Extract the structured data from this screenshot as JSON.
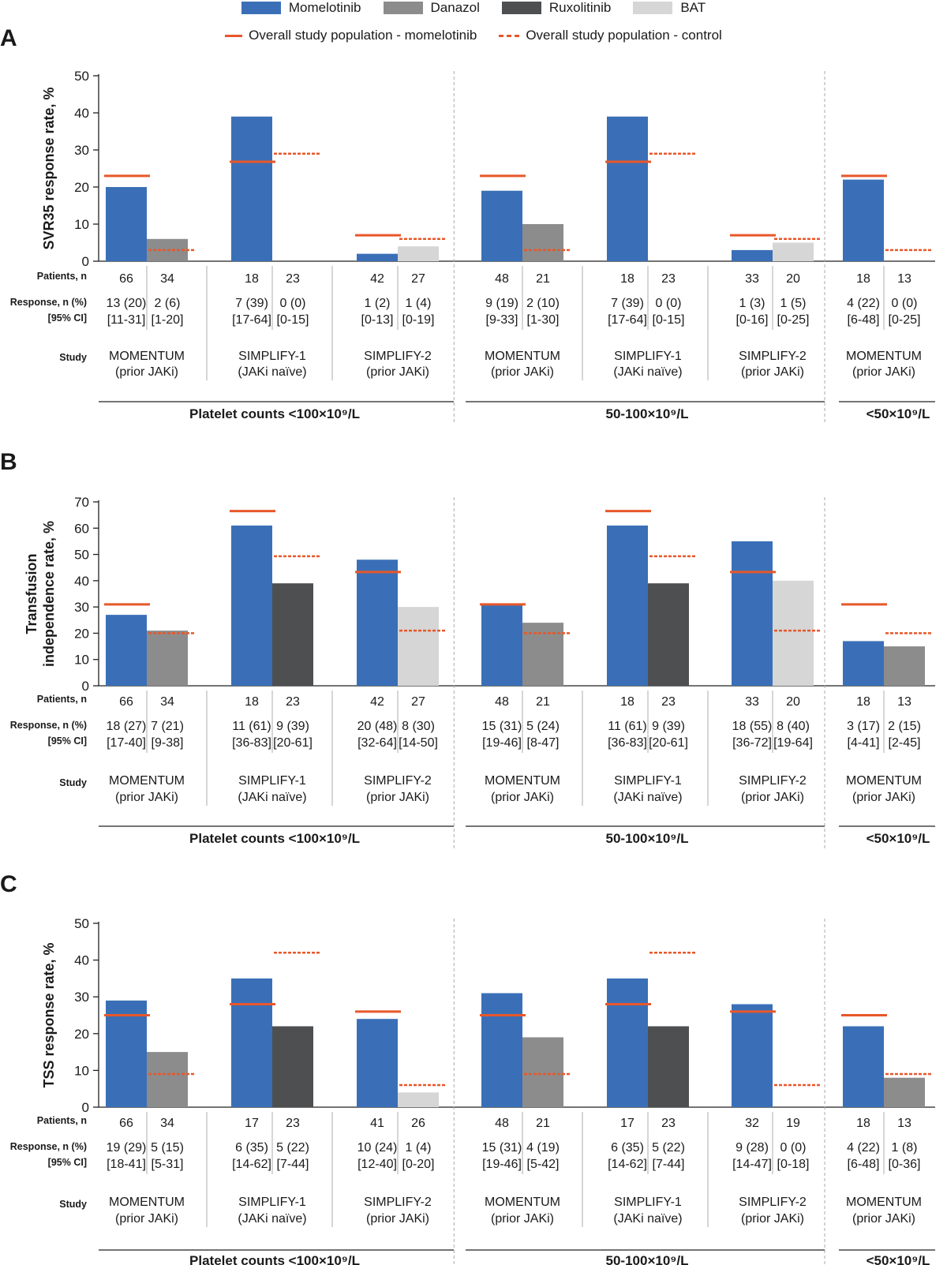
{
  "legend": {
    "items": [
      {
        "label": "Momelotinib",
        "color": "#3a6fb7"
      },
      {
        "label": "Danazol",
        "color": "#8c8c8c"
      },
      {
        "label": "Ruxolitinib",
        "color": "#4d4f51"
      },
      {
        "label": "BAT",
        "color": "#d6d6d6"
      }
    ],
    "overall_mmb_label": "Overall study population - momelotinib",
    "overall_ctrl_label": "Overall study population - control",
    "ref_color": "#e8572a"
  },
  "row_labels": {
    "patients": "Patients, n",
    "response": "Response, n (%)",
    "ci": "[95% CI]",
    "study": "Study"
  },
  "groups": [
    {
      "label": "Platelet counts <100×10⁹/L"
    },
    {
      "label": "50-100×10⁹/L"
    },
    {
      "label": "<50×10⁹/L"
    }
  ],
  "chart_data": [
    {
      "panel": "A",
      "type": "bar",
      "ylabel": "SVR35 response rate, %",
      "ylim": [
        0,
        50
      ],
      "yticks": [
        0,
        10,
        20,
        30,
        40,
        50
      ],
      "studies": [
        {
          "name": "MOMENTUM",
          "sub": "(prior JAKi)",
          "ref_mmb": 23,
          "ref_ctrl": 3,
          "bars": [
            {
              "arm": "Momelotinib",
              "value": 20,
              "n": "66",
              "resp": "13 (20)",
              "ci": "[11-31]"
            },
            {
              "arm": "Danazol",
              "value": 6,
              "n": "34",
              "resp": "2 (6)",
              "ci": "[1-20]"
            }
          ]
        },
        {
          "name": "SIMPLIFY-1",
          "sub": "(JAKi naïve)",
          "ref_mmb": 26.8,
          "ref_ctrl": 29,
          "bars": [
            {
              "arm": "Momelotinib",
              "value": 39,
              "n": "18",
              "resp": "7 (39)",
              "ci": "[17-64]"
            },
            {
              "arm": "Ruxolitinib",
              "value": 0,
              "n": "23",
              "resp": "0 (0)",
              "ci": "[0-15]"
            }
          ]
        },
        {
          "name": "SIMPLIFY-2",
          "sub": "(prior JAKi)",
          "ref_mmb": 7,
          "ref_ctrl": 6,
          "bars": [
            {
              "arm": "Momelotinib",
              "value": 2,
              "n": "42",
              "resp": "1 (2)",
              "ci": "[0-13]"
            },
            {
              "arm": "BAT",
              "value": 4,
              "n": "27",
              "resp": "1 (4)",
              "ci": "[0-19]"
            }
          ]
        },
        {
          "name": "MOMENTUM",
          "sub": "(prior JAKi)",
          "ref_mmb": 23,
          "ref_ctrl": 3,
          "bars": [
            {
              "arm": "Momelotinib",
              "value": 19,
              "n": "48",
              "resp": "9 (19)",
              "ci": "[9-33]"
            },
            {
              "arm": "Danazol",
              "value": 10,
              "n": "21",
              "resp": "2 (10)",
              "ci": "[1-30]"
            }
          ]
        },
        {
          "name": "SIMPLIFY-1",
          "sub": "(JAKi naïve)",
          "ref_mmb": 26.8,
          "ref_ctrl": 29,
          "bars": [
            {
              "arm": "Momelotinib",
              "value": 39,
              "n": "18",
              "resp": "7 (39)",
              "ci": "[17-64]"
            },
            {
              "arm": "Ruxolitinib",
              "value": 0,
              "n": "23",
              "resp": "0 (0)",
              "ci": "[0-15]"
            }
          ]
        },
        {
          "name": "SIMPLIFY-2",
          "sub": "(prior JAKi)",
          "ref_mmb": 7,
          "ref_ctrl": 6,
          "bars": [
            {
              "arm": "Momelotinib",
              "value": 3,
              "n": "33",
              "resp": "1 (3)",
              "ci": "[0-16]"
            },
            {
              "arm": "BAT",
              "value": 5,
              "n": "20",
              "resp": "1 (5)",
              "ci": "[0-25]"
            }
          ]
        },
        {
          "name": "MOMENTUM",
          "sub": "(prior JAKi)",
          "ref_mmb": 23,
          "ref_ctrl": 3,
          "bars": [
            {
              "arm": "Momelotinib",
              "value": 22,
              "n": "18",
              "resp": "4 (22)",
              "ci": "[6-48]"
            },
            {
              "arm": "Danazol",
              "value": 0,
              "n": "13",
              "resp": "0 (0)",
              "ci": "[0-25]"
            }
          ]
        }
      ]
    },
    {
      "panel": "B",
      "type": "bar",
      "ylabel": "Transfusion independence rate, %",
      "ylabel_lines": [
        "Transfusion",
        "independence rate, %"
      ],
      "ylim": [
        0,
        70
      ],
      "yticks": [
        0,
        10,
        20,
        30,
        40,
        50,
        60,
        70
      ],
      "studies": [
        {
          "name": "MOMENTUM",
          "sub": "(prior JAKi)",
          "ref_mmb": 31,
          "ref_ctrl": 20,
          "bars": [
            {
              "arm": "Momelotinib",
              "value": 27,
              "n": "66",
              "resp": "18 (27)",
              "ci": "[17-40]"
            },
            {
              "arm": "Danazol",
              "value": 21,
              "n": "34",
              "resp": "7 (21)",
              "ci": "[9-38]"
            }
          ]
        },
        {
          "name": "SIMPLIFY-1",
          "sub": "(JAKi naïve)",
          "ref_mmb": 66.5,
          "ref_ctrl": 49.3,
          "bars": [
            {
              "arm": "Momelotinib",
              "value": 61,
              "n": "18",
              "resp": "11 (61)",
              "ci": "[36-83]"
            },
            {
              "arm": "Ruxolitinib",
              "value": 39,
              "n": "23",
              "resp": "9 (39)",
              "ci": "[20-61]"
            }
          ]
        },
        {
          "name": "SIMPLIFY-2",
          "sub": "(prior JAKi)",
          "ref_mmb": 43.3,
          "ref_ctrl": 21,
          "bars": [
            {
              "arm": "Momelotinib",
              "value": 48,
              "n": "42",
              "resp": "20 (48)",
              "ci": "[32-64]"
            },
            {
              "arm": "BAT",
              "value": 30,
              "n": "27",
              "resp": "8 (30)",
              "ci": "[14-50]"
            }
          ]
        },
        {
          "name": "MOMENTUM",
          "sub": "(prior JAKi)",
          "ref_mmb": 31,
          "ref_ctrl": 20,
          "bars": [
            {
              "arm": "Momelotinib",
              "value": 31,
              "n": "48",
              "resp": "15 (31)",
              "ci": "[19-46]"
            },
            {
              "arm": "Danazol",
              "value": 24,
              "n": "21",
              "resp": "5 (24)",
              "ci": "[8-47]"
            }
          ]
        },
        {
          "name": "SIMPLIFY-1",
          "sub": "(JAKi naïve)",
          "ref_mmb": 66.5,
          "ref_ctrl": 49.3,
          "bars": [
            {
              "arm": "Momelotinib",
              "value": 61,
              "n": "18",
              "resp": "11 (61)",
              "ci": "[36-83]"
            },
            {
              "arm": "Ruxolitinib",
              "value": 39,
              "n": "23",
              "resp": "9 (39)",
              "ci": "[20-61]"
            }
          ]
        },
        {
          "name": "SIMPLIFY-2",
          "sub": "(prior JAKi)",
          "ref_mmb": 43.3,
          "ref_ctrl": 21,
          "bars": [
            {
              "arm": "Momelotinib",
              "value": 55,
              "n": "33",
              "resp": "18 (55)",
              "ci": "[36-72]"
            },
            {
              "arm": "BAT",
              "value": 40,
              "n": "20",
              "resp": "8 (40)",
              "ci": "[19-64]"
            }
          ]
        },
        {
          "name": "MOMENTUM",
          "sub": "(prior JAKi)",
          "ref_mmb": 31,
          "ref_ctrl": 20,
          "bars": [
            {
              "arm": "Momelotinib",
              "value": 17,
              "n": "18",
              "resp": "3 (17)",
              "ci": "[4-41]"
            },
            {
              "arm": "Danazol",
              "value": 15,
              "n": "13",
              "resp": "2 (15)",
              "ci": "[2-45]"
            }
          ]
        }
      ]
    },
    {
      "panel": "C",
      "type": "bar",
      "ylabel": "TSS response rate, %",
      "ylim": [
        0,
        50
      ],
      "yticks": [
        0,
        10,
        20,
        30,
        40,
        50
      ],
      "studies": [
        {
          "name": "MOMENTUM",
          "sub": "(prior JAKi)",
          "ref_mmb": 25,
          "ref_ctrl": 9,
          "bars": [
            {
              "arm": "Momelotinib",
              "value": 29,
              "n": "66",
              "resp": "19 (29)",
              "ci": "[18-41]"
            },
            {
              "arm": "Danazol",
              "value": 15,
              "n": "34",
              "resp": "5 (15)",
              "ci": "[5-31]"
            }
          ]
        },
        {
          "name": "SIMPLIFY-1",
          "sub": "(JAKi naïve)",
          "ref_mmb": 28,
          "ref_ctrl": 42,
          "bars": [
            {
              "arm": "Momelotinib",
              "value": 35,
              "n": "17",
              "resp": "6 (35)",
              "ci": "[14-62]"
            },
            {
              "arm": "Ruxolitinib",
              "value": 22,
              "n": "23",
              "resp": "5 (22)",
              "ci": "[7-44]"
            }
          ]
        },
        {
          "name": "SIMPLIFY-2",
          "sub": "(prior JAKi)",
          "ref_mmb": 26,
          "ref_ctrl": 6,
          "bars": [
            {
              "arm": "Momelotinib",
              "value": 24,
              "n": "41",
              "resp": "10 (24)",
              "ci": "[12-40]"
            },
            {
              "arm": "BAT",
              "value": 4,
              "n": "26",
              "resp": "1 (4)",
              "ci": "[0-20]"
            }
          ]
        },
        {
          "name": "MOMENTUM",
          "sub": "(prior JAKi)",
          "ref_mmb": 25,
          "ref_ctrl": 9,
          "bars": [
            {
              "arm": "Momelotinib",
              "value": 31,
              "n": "48",
              "resp": "15 (31)",
              "ci": "[19-46]"
            },
            {
              "arm": "Danazol",
              "value": 19,
              "n": "21",
              "resp": "4 (19)",
              "ci": "[5-42]"
            }
          ]
        },
        {
          "name": "SIMPLIFY-1",
          "sub": "(JAKi naïve)",
          "ref_mmb": 28,
          "ref_ctrl": 42,
          "bars": [
            {
              "arm": "Momelotinib",
              "value": 35,
              "n": "17",
              "resp": "6 (35)",
              "ci": "[14-62]"
            },
            {
              "arm": "Ruxolitinib",
              "value": 22,
              "n": "23",
              "resp": "5 (22)",
              "ci": "[7-44]"
            }
          ]
        },
        {
          "name": "SIMPLIFY-2",
          "sub": "(prior JAKi)",
          "ref_mmb": 26,
          "ref_ctrl": 6,
          "bars": [
            {
              "arm": "Momelotinib",
              "value": 28,
              "n": "32",
              "resp": "9 (28)",
              "ci": "[14-47]"
            },
            {
              "arm": "BAT",
              "value": 0,
              "n": "19",
              "resp": "0 (0)",
              "ci": "[0-18]"
            }
          ]
        },
        {
          "name": "MOMENTUM",
          "sub": "(prior JAKi)",
          "ref_mmb": 25,
          "ref_ctrl": 9,
          "bars": [
            {
              "arm": "Momelotinib",
              "value": 22,
              "n": "18",
              "resp": "4 (22)",
              "ci": "[6-48]"
            },
            {
              "arm": "Danazol",
              "value": 8,
              "n": "13",
              "resp": "1 (8)",
              "ci": "[0-36]"
            }
          ]
        }
      ]
    }
  ]
}
